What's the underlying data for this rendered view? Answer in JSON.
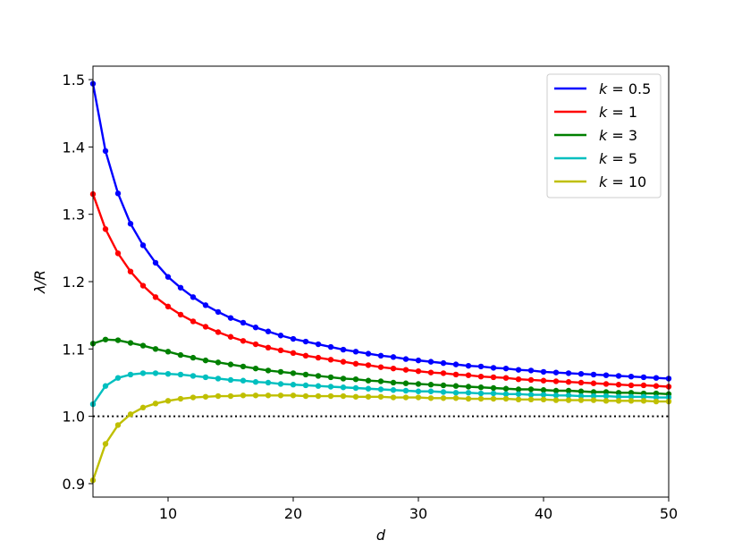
{
  "chart_data": {
    "type": "line",
    "title": "",
    "xlabel": "d",
    "ylabel": "λ/R",
    "xlim": [
      4,
      50
    ],
    "ylim": [
      0.88,
      1.52
    ],
    "xticks": [
      10,
      20,
      30,
      40,
      50
    ],
    "yticks": [
      0.9,
      1.0,
      1.1,
      1.2,
      1.3,
      1.4,
      1.5
    ],
    "xtick_labels": [
      "10",
      "20",
      "30",
      "40",
      "50"
    ],
    "ytick_labels": [
      "0.9",
      "1.0",
      "1.1",
      "1.2",
      "1.3",
      "1.4",
      "1.5"
    ],
    "grid": false,
    "legend_position": "top-right",
    "reference_line": {
      "y": 1.0,
      "style": "dotted",
      "color": "#000000"
    },
    "x": [
      4,
      5,
      6,
      7,
      8,
      9,
      10,
      11,
      12,
      13,
      14,
      15,
      16,
      17,
      18,
      19,
      20,
      21,
      22,
      23,
      24,
      25,
      26,
      27,
      28,
      29,
      30,
      31,
      32,
      33,
      34,
      35,
      36,
      37,
      38,
      39,
      40,
      41,
      42,
      43,
      44,
      45,
      46,
      47,
      48,
      49,
      50
    ],
    "series": [
      {
        "name": "k = 0.5",
        "label_k": "k",
        "label_val": "0.5",
        "color": "#0000ff",
        "values": [
          1.494,
          1.394,
          1.331,
          1.286,
          1.254,
          1.228,
          1.207,
          1.191,
          1.177,
          1.165,
          1.155,
          1.146,
          1.139,
          1.132,
          1.126,
          1.12,
          1.115,
          1.111,
          1.107,
          1.103,
          1.099,
          1.096,
          1.093,
          1.09,
          1.088,
          1.085,
          1.083,
          1.081,
          1.079,
          1.077,
          1.075,
          1.074,
          1.072,
          1.071,
          1.069,
          1.068,
          1.066,
          1.065,
          1.064,
          1.063,
          1.062,
          1.061,
          1.06,
          1.059,
          1.058,
          1.057,
          1.056
        ]
      },
      {
        "name": "k = 1",
        "label_k": "k",
        "label_val": "1",
        "color": "#ff0000",
        "values": [
          1.33,
          1.278,
          1.242,
          1.215,
          1.194,
          1.177,
          1.163,
          1.151,
          1.141,
          1.133,
          1.125,
          1.118,
          1.112,
          1.107,
          1.102,
          1.098,
          1.094,
          1.09,
          1.087,
          1.084,
          1.081,
          1.078,
          1.076,
          1.073,
          1.071,
          1.069,
          1.067,
          1.065,
          1.064,
          1.062,
          1.061,
          1.059,
          1.058,
          1.057,
          1.055,
          1.054,
          1.053,
          1.052,
          1.051,
          1.05,
          1.049,
          1.048,
          1.047,
          1.046,
          1.046,
          1.045,
          1.044
        ]
      },
      {
        "name": "k = 3",
        "label_k": "k",
        "label_val": "3",
        "color": "#008000",
        "values": [
          1.108,
          1.114,
          1.113,
          1.109,
          1.105,
          1.1,
          1.096,
          1.091,
          1.087,
          1.083,
          1.08,
          1.077,
          1.074,
          1.071,
          1.068,
          1.066,
          1.064,
          1.062,
          1.06,
          1.058,
          1.056,
          1.055,
          1.053,
          1.052,
          1.05,
          1.049,
          1.048,
          1.047,
          1.046,
          1.045,
          1.044,
          1.043,
          1.042,
          1.041,
          1.04,
          1.04,
          1.039,
          1.038,
          1.038,
          1.037,
          1.036,
          1.036,
          1.035,
          1.035,
          1.034,
          1.034,
          1.033
        ]
      },
      {
        "name": "k = 5",
        "label_k": "k",
        "label_val": "5",
        "color": "#00bfbf",
        "values": [
          1.018,
          1.045,
          1.057,
          1.062,
          1.064,
          1.064,
          1.063,
          1.062,
          1.06,
          1.058,
          1.056,
          1.054,
          1.053,
          1.051,
          1.05,
          1.048,
          1.047,
          1.046,
          1.045,
          1.044,
          1.043,
          1.042,
          1.041,
          1.04,
          1.039,
          1.038,
          1.037,
          1.037,
          1.036,
          1.035,
          1.035,
          1.034,
          1.034,
          1.033,
          1.033,
          1.032,
          1.032,
          1.031,
          1.031,
          1.03,
          1.03,
          1.03,
          1.029,
          1.029,
          1.029,
          1.028,
          1.028
        ]
      },
      {
        "name": "k = 10",
        "label_k": "k",
        "label_val": "10",
        "color": "#bfbf00",
        "values": [
          0.905,
          0.959,
          0.987,
          1.003,
          1.013,
          1.019,
          1.023,
          1.026,
          1.028,
          1.029,
          1.03,
          1.03,
          1.031,
          1.031,
          1.031,
          1.031,
          1.031,
          1.03,
          1.03,
          1.03,
          1.03,
          1.029,
          1.029,
          1.029,
          1.028,
          1.028,
          1.028,
          1.027,
          1.027,
          1.027,
          1.026,
          1.026,
          1.026,
          1.026,
          1.025,
          1.025,
          1.025,
          1.024,
          1.024,
          1.024,
          1.024,
          1.023,
          1.023,
          1.023,
          1.023,
          1.022,
          1.022
        ]
      }
    ]
  }
}
